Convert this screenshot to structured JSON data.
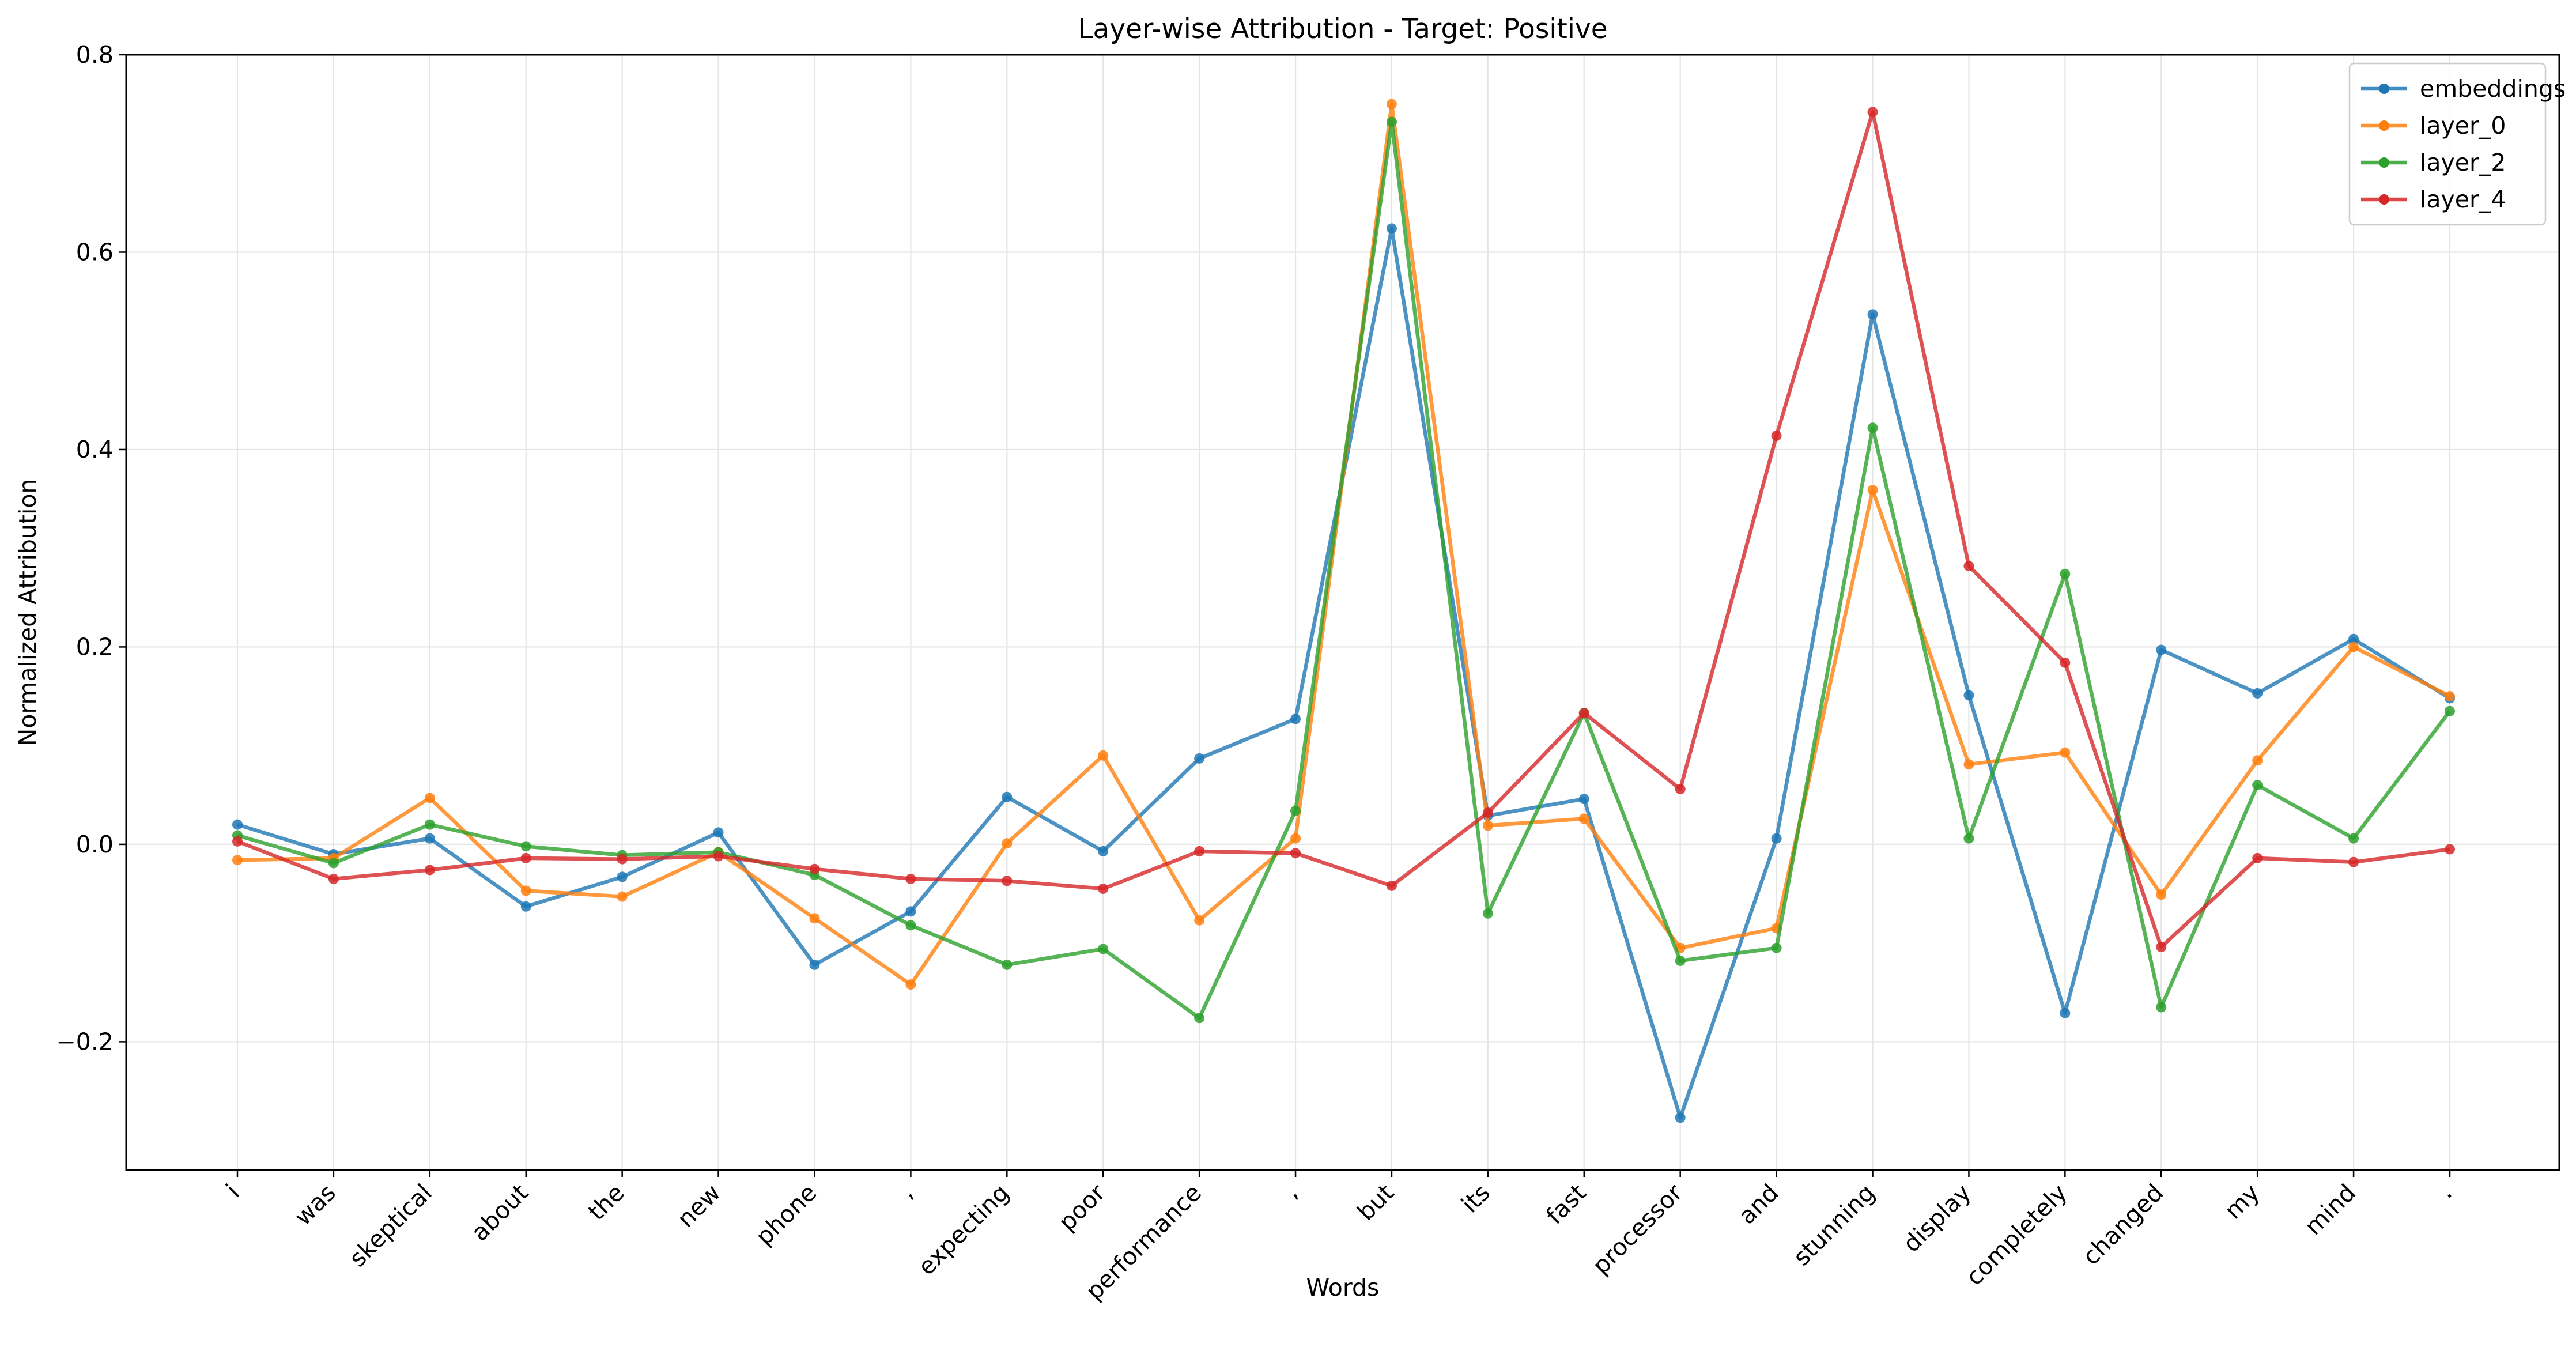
{
  "chart_data": {
    "type": "line",
    "title": "Layer-wise Attribution - Target: Positive",
    "xlabel": "Words",
    "ylabel": "Normalized Attribution",
    "categories": [
      "i",
      "was",
      "skeptical",
      "about",
      "the",
      "new",
      "phone",
      ",",
      "expecting",
      "poor",
      "performance",
      ",",
      "but",
      "its",
      "fast",
      "processor",
      "and",
      "stunning",
      "display",
      "completely",
      "changed",
      "my",
      "mind",
      "."
    ],
    "ylim": [
      -0.33,
      0.8
    ],
    "yticks": [
      -0.2,
      0.0,
      0.2,
      0.4,
      0.6,
      0.8
    ],
    "ytick_labels": [
      "−0.2",
      "0.0",
      "0.2",
      "0.4",
      "0.6",
      "0.8"
    ],
    "grid": true,
    "legend_position": "top-right",
    "series": [
      {
        "name": "embeddings",
        "color": "#1f77b4",
        "values": [
          0.02,
          -0.01,
          0.006,
          -0.063,
          -0.033,
          0.012,
          -0.122,
          -0.068,
          0.048,
          -0.007,
          0.087,
          0.127,
          0.624,
          0.029,
          0.046,
          -0.277,
          0.006,
          0.537,
          0.151,
          -0.171,
          0.197,
          0.153,
          0.208,
          0.148
        ]
      },
      {
        "name": "layer_0",
        "color": "#ff7f0e",
        "values": [
          -0.016,
          -0.014,
          0.047,
          -0.047,
          -0.053,
          -0.008,
          -0.075,
          -0.142,
          0.001,
          0.09,
          -0.077,
          0.006,
          0.75,
          0.019,
          0.026,
          -0.105,
          -0.085,
          0.359,
          0.081,
          0.093,
          -0.051,
          0.085,
          0.2,
          0.15
        ]
      },
      {
        "name": "layer_2",
        "color": "#2ca02c",
        "values": [
          0.009,
          -0.019,
          0.02,
          -0.002,
          -0.011,
          -0.008,
          -0.031,
          -0.082,
          -0.122,
          -0.106,
          -0.176,
          0.034,
          0.732,
          -0.07,
          0.133,
          -0.118,
          -0.105,
          0.422,
          0.006,
          0.274,
          -0.165,
          0.06,
          0.006,
          0.135
        ]
      },
      {
        "name": "layer_4",
        "color": "#d62728",
        "values": [
          0.003,
          -0.035,
          -0.026,
          -0.014,
          -0.015,
          -0.012,
          -0.025,
          -0.035,
          -0.037,
          -0.045,
          -0.007,
          -0.009,
          -0.042,
          0.032,
          0.133,
          0.056,
          0.414,
          0.742,
          0.282,
          0.184,
          -0.104,
          -0.014,
          -0.018,
          -0.005
        ]
      }
    ]
  }
}
